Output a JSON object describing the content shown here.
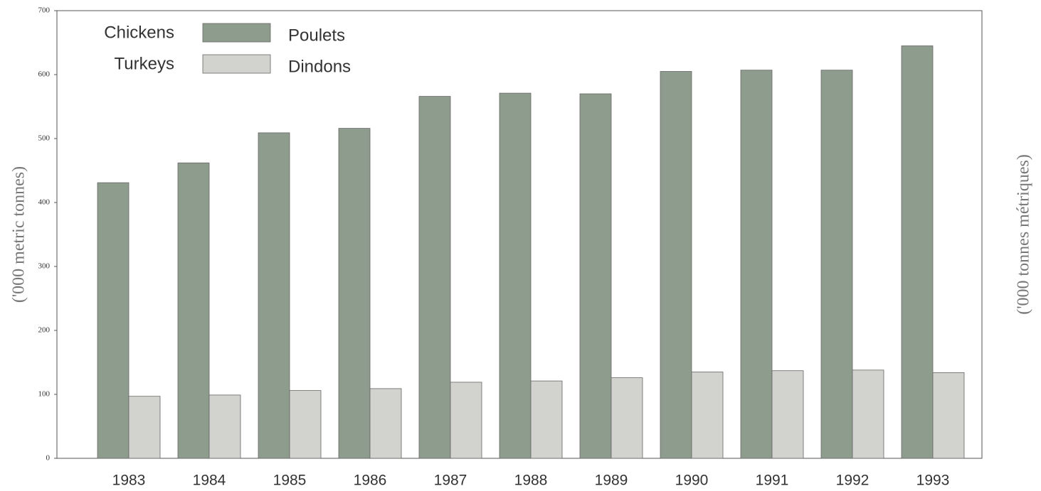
{
  "chart_data": {
    "type": "bar",
    "y_label": "('000 metric tonnes)",
    "y2_label": "('000 tonnes métriques)",
    "categories": [
      "1983",
      "1984",
      "1985",
      "1986",
      "1987",
      "1988",
      "1989",
      "1990",
      "1991",
      "1992",
      "1993"
    ],
    "series": [
      {
        "name": "Chickens",
        "name_fr": "Poulets",
        "color": "#8e9c8e",
        "values": [
          431,
          462,
          509,
          516,
          566,
          571,
          570,
          605,
          607,
          607,
          645
        ]
      },
      {
        "name": "Turkeys",
        "name_fr": "Dindons",
        "color": "#d2d3ce",
        "values": [
          97,
          99,
          106,
          109,
          119,
          121,
          126,
          135,
          137,
          138,
          134
        ]
      }
    ],
    "ylim": [
      0,
      700
    ],
    "yticks": [
      0,
      100,
      200,
      300,
      400,
      500,
      600,
      700
    ],
    "legend": "upper left"
  }
}
